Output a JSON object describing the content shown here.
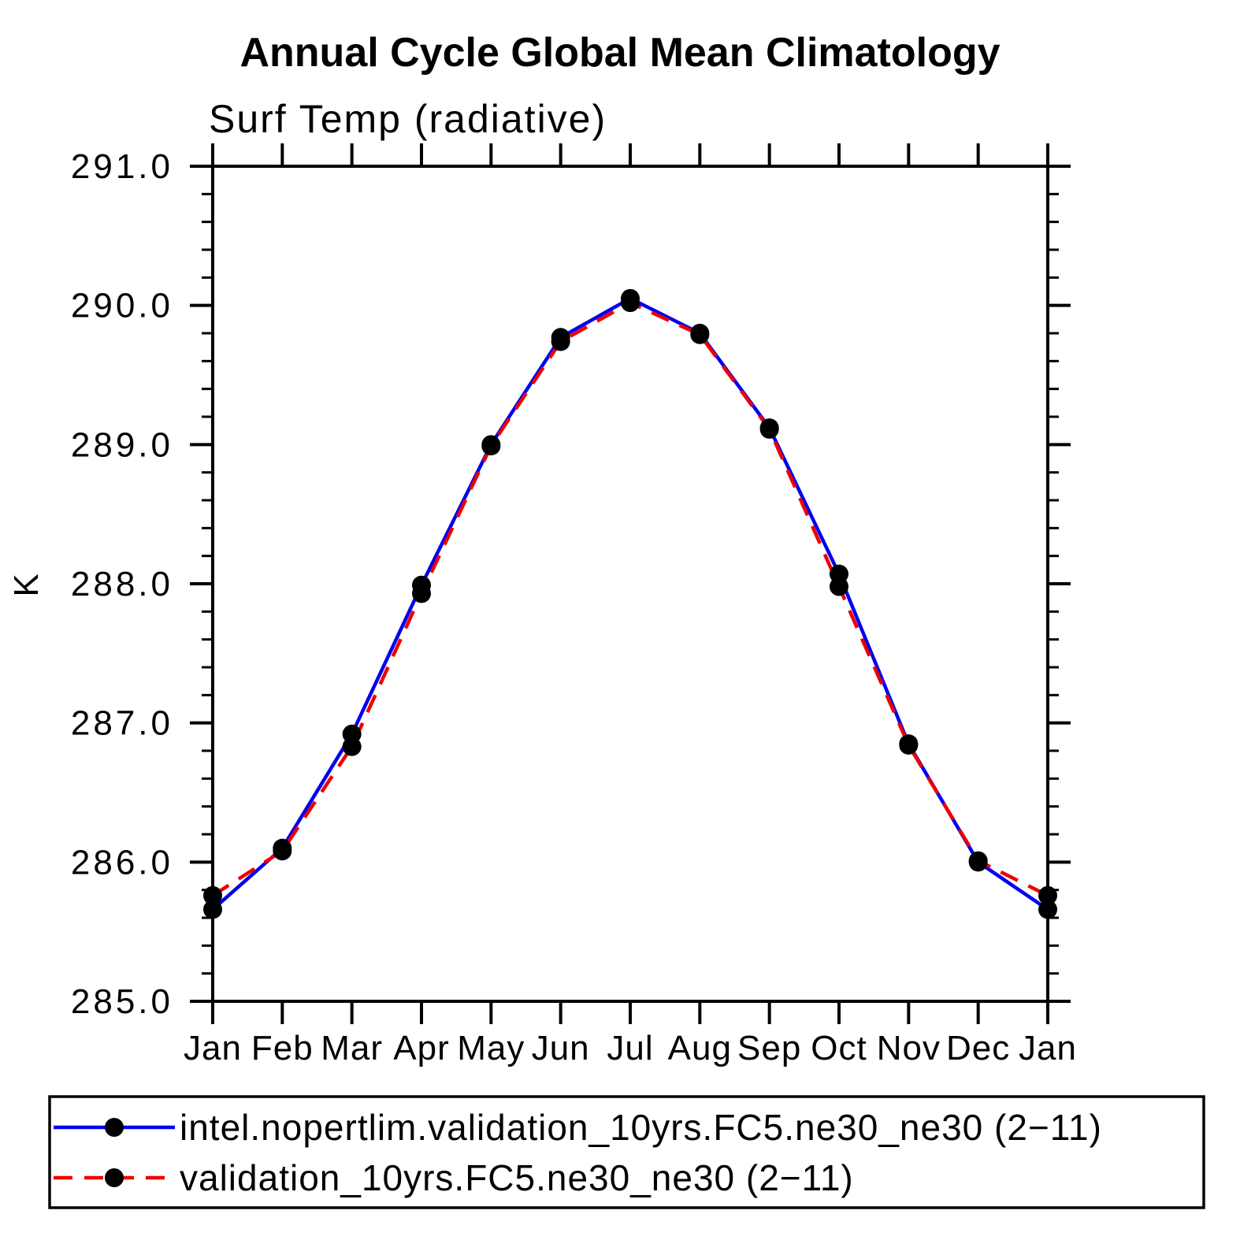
{
  "title": "Annual Cycle Global Mean Climatology",
  "subtitle": "Surf Temp (radiative)",
  "chart_data": {
    "type": "line",
    "title": "Annual Cycle Global Mean Climatology",
    "subtitle": "Surf Temp (radiative)",
    "xlabel": "",
    "ylabel": "K",
    "ylim": [
      285.0,
      291.0
    ],
    "ytick_step": 1.0,
    "ytick_minor_step": 0.2,
    "grid": false,
    "legend_position": "bottom-box",
    "categories": [
      "Jan",
      "Feb",
      "Mar",
      "Apr",
      "May",
      "Jun",
      "Jul",
      "Aug",
      "Sep",
      "Oct",
      "Nov",
      "Dec",
      "Jan"
    ],
    "series": [
      {
        "name": "intel.nopertlim.validation_10yrs.FC5.ne30_ne30 (2−11)",
        "color": "#0000ee",
        "line_style": "solid",
        "marker": "filled-circle",
        "marker_color": "#000000",
        "values": [
          285.66,
          286.1,
          286.92,
          287.99,
          289.0,
          289.77,
          290.05,
          289.8,
          289.12,
          288.07,
          286.85,
          286.0,
          285.66
        ]
      },
      {
        "name": "validation_10yrs.FC5.ne30_ne30 (2−11)",
        "color": "#ee0000",
        "line_style": "dashed",
        "marker": "filled-circle",
        "marker_color": "#000000",
        "values": [
          285.76,
          286.08,
          286.83,
          287.93,
          288.99,
          289.74,
          290.02,
          289.79,
          289.11,
          287.98,
          286.84,
          286.01,
          285.76
        ]
      }
    ],
    "axis_color": "#000000"
  }
}
